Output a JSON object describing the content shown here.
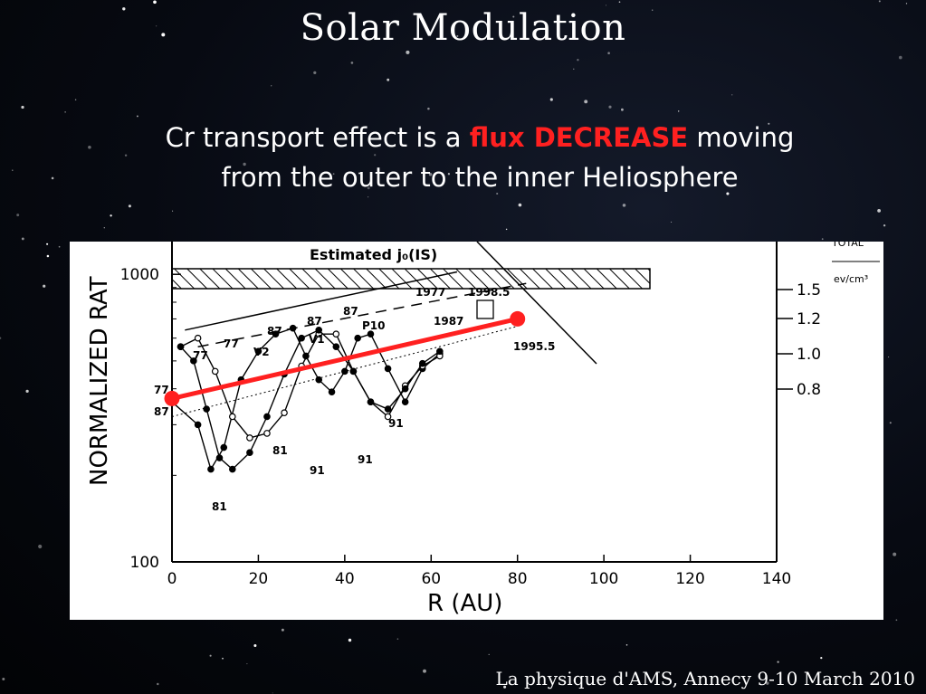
{
  "slide": {
    "title": "Solar Modulation",
    "subtitle_line1_pre": "Cr transport effect is a ",
    "subtitle_highlight": "flux DECREASE",
    "subtitle_line1_post": " moving",
    "subtitle_line2": "from the outer to the inner Heliosphere",
    "footer": "La physique d'AMS, Annecy 9-10 March 2010",
    "highlight_color": "#ff2020"
  },
  "chart_data": {
    "type": "line",
    "title": "",
    "xlabel": "R  (AU)",
    "ylabel": "NORMALIZED  RAT",
    "xlim": [
      0,
      140
    ],
    "ylim": [
      100,
      1300
    ],
    "yscale": "log",
    "x_ticks": [
      "0",
      "20",
      "40",
      "60",
      "80",
      "100",
      "120",
      "140"
    ],
    "y_ticks": [
      "100",
      "1000"
    ],
    "right_axis_title": "TOTAL",
    "right_axis_units": "ev/cm³",
    "right_axis_ticks": [
      "1.5",
      "1.2",
      "1.0",
      "0.8"
    ],
    "band_label": "Estimated  j₀(IS)",
    "annotations": [
      "1977",
      "1998.5",
      "1987",
      "1995.5",
      "P10",
      "V1",
      "V2",
      "77",
      "77",
      "77",
      "87",
      "87",
      "87",
      "87",
      "81",
      "81",
      "91",
      "91",
      "91"
    ],
    "series": [
      {
        "name": "P10",
        "x": [
          0,
          6,
          9,
          12,
          16,
          20,
          24,
          28,
          31,
          34,
          37,
          40,
          43,
          46,
          50,
          54,
          58,
          62
        ],
        "y": [
          360,
          300,
          210,
          250,
          430,
          540,
          620,
          650,
          520,
          430,
          390,
          460,
          600,
          620,
          470,
          360,
          470,
          530
        ]
      },
      {
        "name": "V2",
        "x": [
          2,
          6,
          10,
          14,
          18,
          22,
          26,
          30,
          34,
          38,
          42,
          46,
          50,
          54,
          58,
          62
        ],
        "y": [
          560,
          600,
          460,
          320,
          270,
          280,
          330,
          480,
          620,
          620,
          460,
          360,
          320,
          410,
          480,
          520
        ]
      },
      {
        "name": "V1",
        "x": [
          2,
          5,
          8,
          11,
          14,
          18,
          22,
          26,
          30,
          34,
          38,
          42,
          46,
          50,
          54,
          58,
          62
        ],
        "y": [
          560,
          500,
          340,
          230,
          210,
          240,
          320,
          450,
          600,
          640,
          560,
          460,
          360,
          340,
          400,
          490,
          540
        ]
      },
      {
        "name": "Trend (red)",
        "x": [
          0,
          80
        ],
        "y": [
          370,
          700
        ]
      }
    ]
  }
}
